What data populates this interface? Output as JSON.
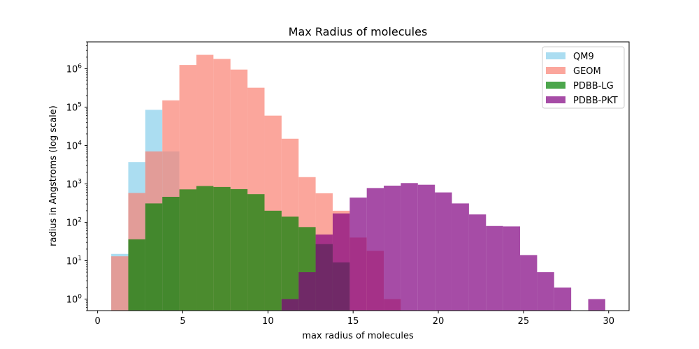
{
  "chart_data": {
    "type": "histogram",
    "title": "Max Radius of molecules",
    "xlabel": "max radius of molecules",
    "ylabel": "radius in Angstroms (log scale)",
    "xlim": [
      -0.6,
      31.2
    ],
    "ylim": [
      0.5,
      5000000
    ],
    "yscale": "log",
    "grid": false,
    "legend_position": "top-right",
    "x_ticks": [
      {
        "value": 0,
        "label": "0"
      },
      {
        "value": 5,
        "label": "5"
      },
      {
        "value": 10,
        "label": "10"
      },
      {
        "value": 15,
        "label": "15"
      },
      {
        "value": 20,
        "label": "20"
      },
      {
        "value": 25,
        "label": "25"
      },
      {
        "value": 30,
        "label": "30"
      }
    ],
    "y_ticks": [
      {
        "value": 1,
        "base": "10",
        "exp": "0"
      },
      {
        "value": 10,
        "base": "10",
        "exp": "1"
      },
      {
        "value": 100,
        "base": "10",
        "exp": "2"
      },
      {
        "value": 1000,
        "base": "10",
        "exp": "3"
      },
      {
        "value": 10000,
        "base": "10",
        "exp": "4"
      },
      {
        "value": 100000,
        "base": "10",
        "exp": "5"
      },
      {
        "value": 1000000,
        "base": "10",
        "exp": "6"
      }
    ],
    "series": [
      {
        "name": "QM9",
        "color": "#87ceeb",
        "opacity": 0.7,
        "bins": [
          {
            "x0": 0.8,
            "x1": 1.8,
            "count": 15
          },
          {
            "x0": 1.8,
            "x1": 2.8,
            "count": 3700
          },
          {
            "x0": 2.8,
            "x1": 3.8,
            "count": 85000
          },
          {
            "x0": 3.8,
            "x1": 4.8,
            "count": 7000
          }
        ]
      },
      {
        "name": "GEOM",
        "color": "#fa8072",
        "opacity": 0.7,
        "bins": [
          {
            "x0": 0.8,
            "x1": 1.8,
            "count": 13
          },
          {
            "x0": 1.8,
            "x1": 2.8,
            "count": 580
          },
          {
            "x0": 2.8,
            "x1": 3.8,
            "count": 7000
          },
          {
            "x0": 3.8,
            "x1": 4.8,
            "count": 150000
          },
          {
            "x0": 4.8,
            "x1": 5.8,
            "count": 1250000
          },
          {
            "x0": 5.8,
            "x1": 6.8,
            "count": 2300000
          },
          {
            "x0": 6.8,
            "x1": 7.8,
            "count": 1800000
          },
          {
            "x0": 7.8,
            "x1": 8.8,
            "count": 950000
          },
          {
            "x0": 8.8,
            "x1": 9.8,
            "count": 320000
          },
          {
            "x0": 9.8,
            "x1": 10.8,
            "count": 60000
          },
          {
            "x0": 10.8,
            "x1": 11.8,
            "count": 15000
          },
          {
            "x0": 11.8,
            "x1": 12.8,
            "count": 1500
          },
          {
            "x0": 12.8,
            "x1": 13.8,
            "count": 570
          },
          {
            "x0": 13.8,
            "x1": 14.8,
            "count": 200
          },
          {
            "x0": 14.8,
            "x1": 15.8,
            "count": 40
          },
          {
            "x0": 15.8,
            "x1": 16.8,
            "count": 18
          },
          {
            "x0": 16.8,
            "x1": 17.8,
            "count": 1
          }
        ]
      },
      {
        "name": "PDBB-LG",
        "color": "#008000",
        "opacity": 0.7,
        "bins": [
          {
            "x0": 1.8,
            "x1": 2.8,
            "count": 36
          },
          {
            "x0": 2.8,
            "x1": 3.8,
            "count": 310
          },
          {
            "x0": 3.8,
            "x1": 4.8,
            "count": 460
          },
          {
            "x0": 4.8,
            "x1": 5.8,
            "count": 720
          },
          {
            "x0": 5.8,
            "x1": 6.8,
            "count": 880
          },
          {
            "x0": 6.8,
            "x1": 7.8,
            "count": 830
          },
          {
            "x0": 7.8,
            "x1": 8.8,
            "count": 730
          },
          {
            "x0": 8.8,
            "x1": 9.8,
            "count": 540
          },
          {
            "x0": 9.8,
            "x1": 10.8,
            "count": 200
          },
          {
            "x0": 10.8,
            "x1": 11.8,
            "count": 140
          },
          {
            "x0": 11.8,
            "x1": 12.8,
            "count": 75
          },
          {
            "x0": 12.8,
            "x1": 13.8,
            "count": 27
          },
          {
            "x0": 13.8,
            "x1": 14.8,
            "count": 9
          }
        ]
      },
      {
        "name": "PDBB-PKT",
        "color": "#800080",
        "opacity": 0.7,
        "bins": [
          {
            "x0": 10.8,
            "x1": 11.8,
            "count": 1
          },
          {
            "x0": 11.8,
            "x1": 12.8,
            "count": 5
          },
          {
            "x0": 12.8,
            "x1": 13.8,
            "count": 48
          },
          {
            "x0": 13.8,
            "x1": 14.8,
            "count": 170
          },
          {
            "x0": 14.8,
            "x1": 15.8,
            "count": 440
          },
          {
            "x0": 15.8,
            "x1": 16.8,
            "count": 780
          },
          {
            "x0": 16.8,
            "x1": 17.8,
            "count": 900
          },
          {
            "x0": 17.8,
            "x1": 18.8,
            "count": 1050
          },
          {
            "x0": 18.8,
            "x1": 19.8,
            "count": 950
          },
          {
            "x0": 19.8,
            "x1": 20.8,
            "count": 600
          },
          {
            "x0": 20.8,
            "x1": 21.8,
            "count": 310
          },
          {
            "x0": 21.8,
            "x1": 22.8,
            "count": 160
          },
          {
            "x0": 22.8,
            "x1": 23.8,
            "count": 80
          },
          {
            "x0": 23.8,
            "x1": 24.8,
            "count": 78
          },
          {
            "x0": 24.8,
            "x1": 25.8,
            "count": 14
          },
          {
            "x0": 25.8,
            "x1": 26.8,
            "count": 5
          },
          {
            "x0": 26.8,
            "x1": 27.8,
            "count": 2
          },
          {
            "x0": 28.8,
            "x1": 29.8,
            "count": 1
          }
        ]
      }
    ]
  }
}
